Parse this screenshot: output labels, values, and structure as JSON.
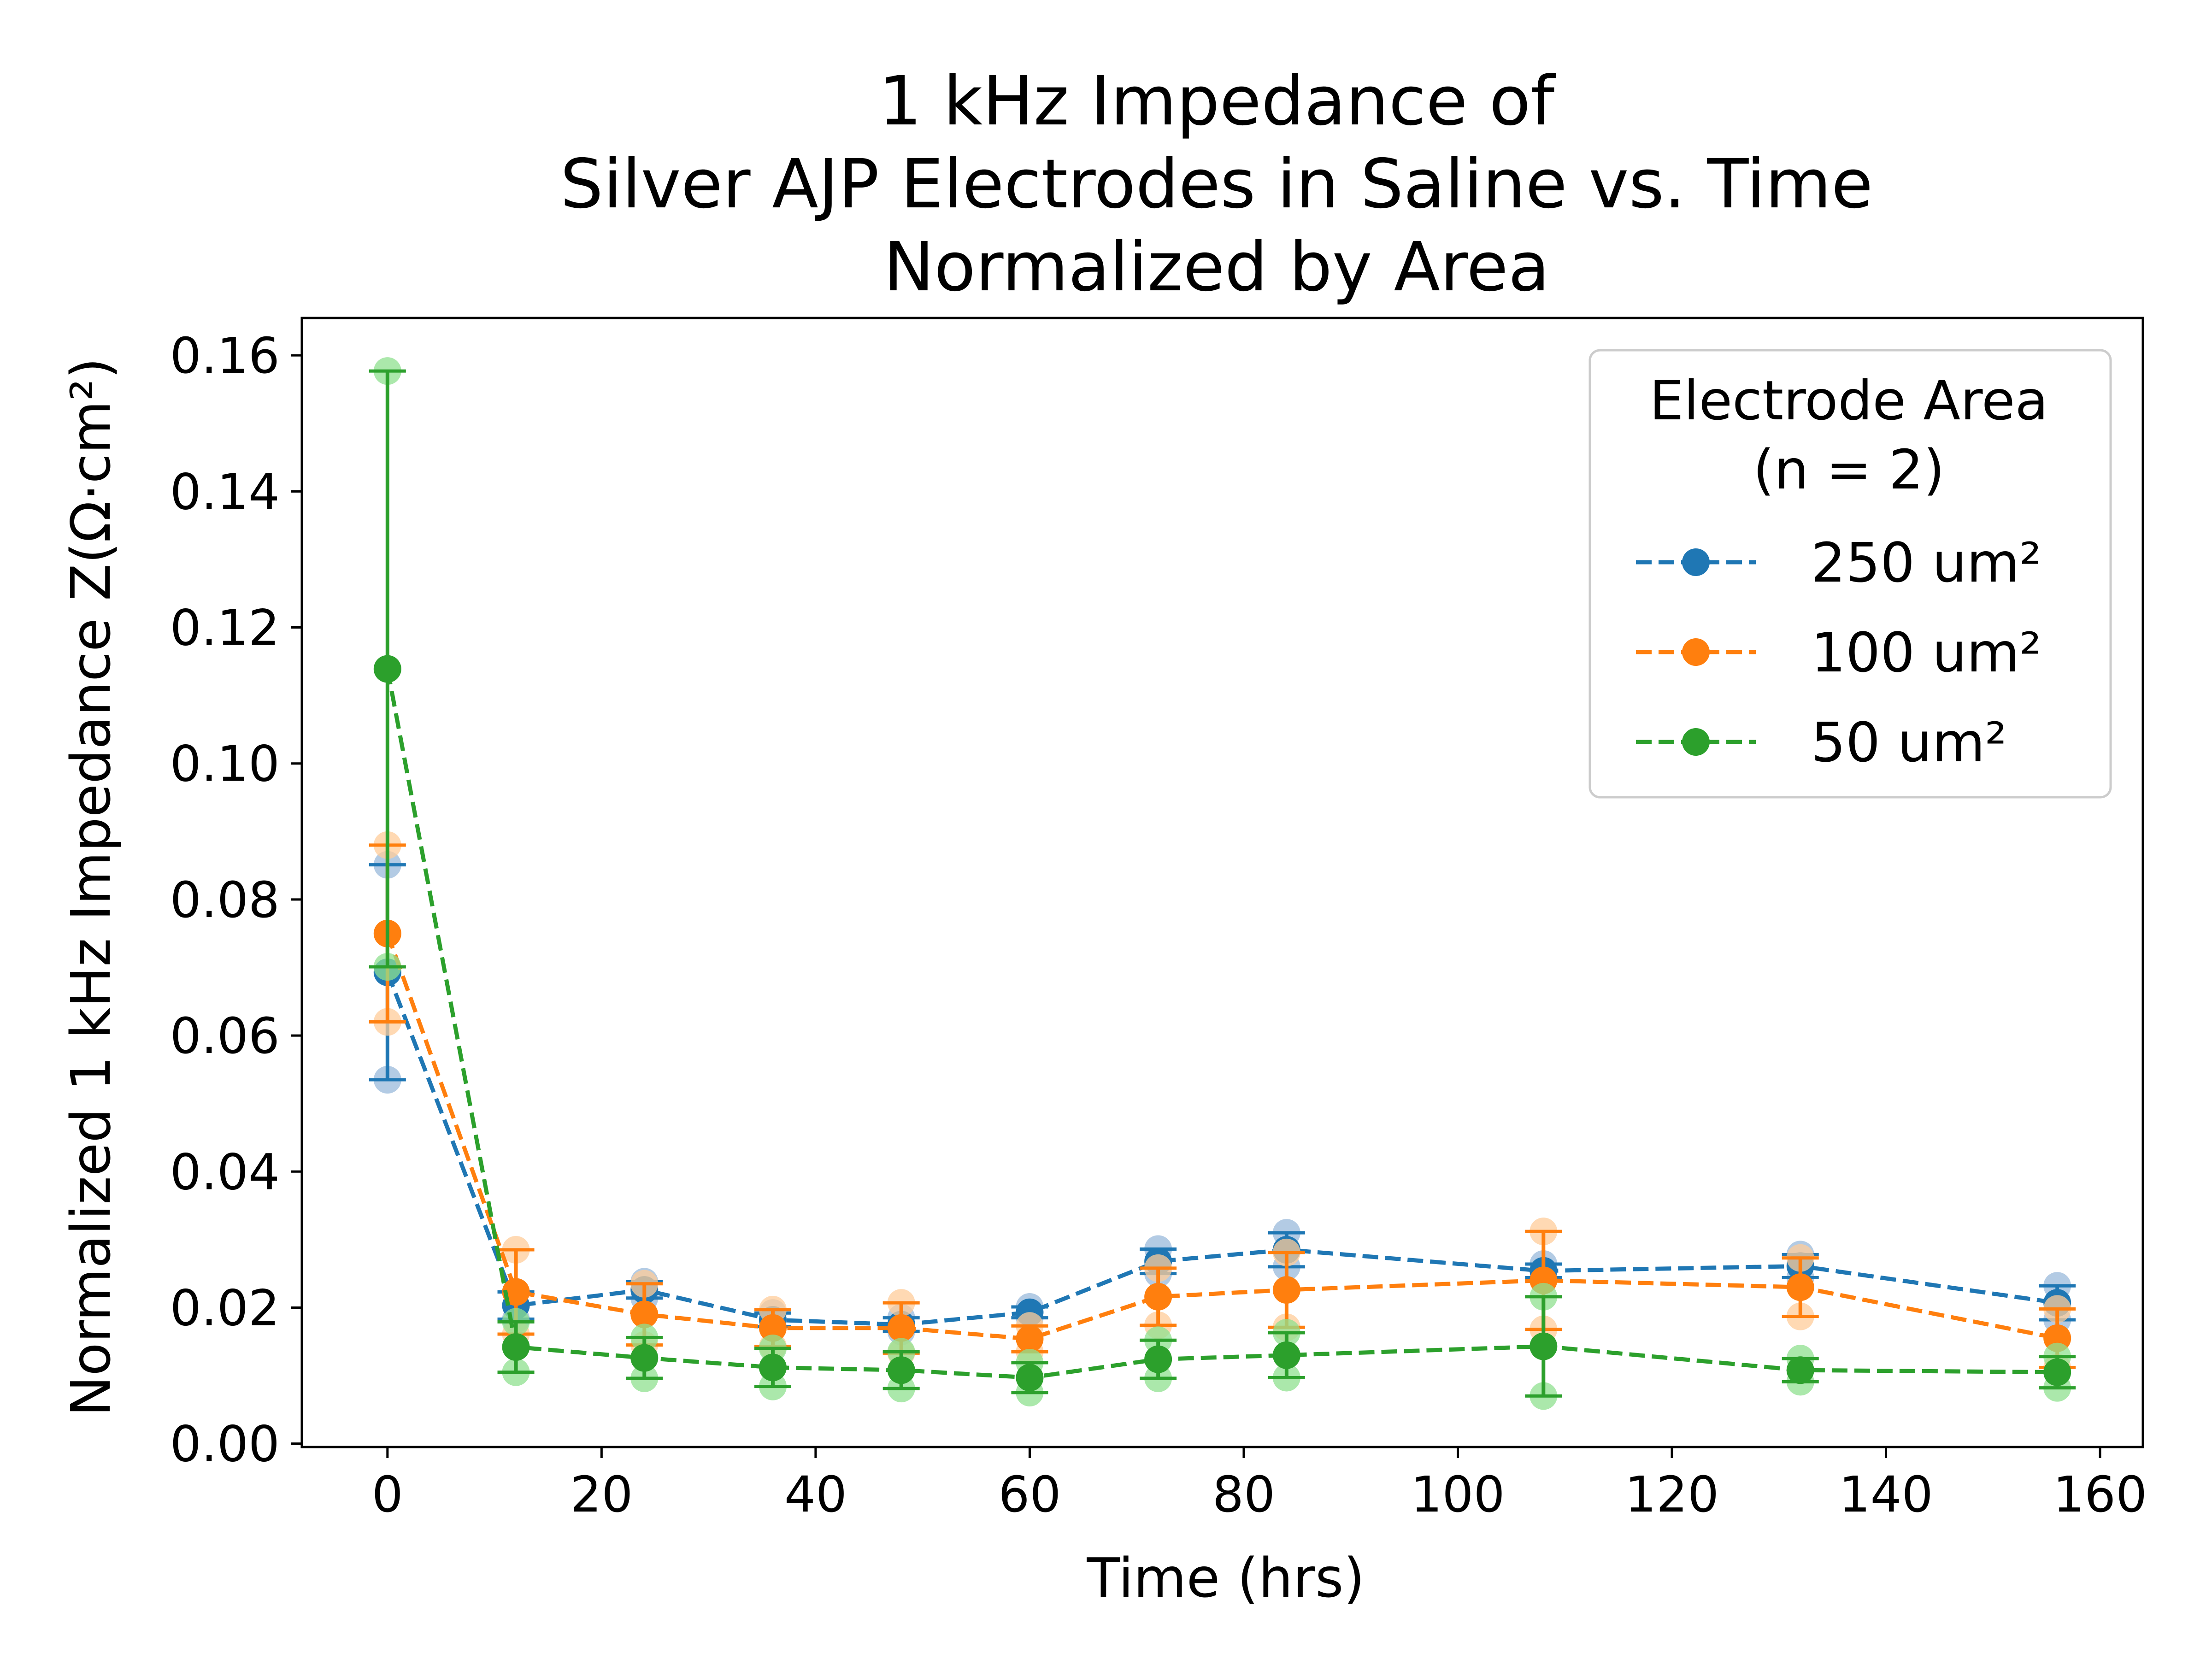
{
  "chart_data": {
    "type": "line",
    "title": [
      "1 kHz Impedance of",
      "Silver AJP Electrodes in Saline vs. Time",
      "Normalized by Area"
    ],
    "xlabel": "Time (hrs)",
    "ylabel": "Normalized 1 kHz Impedance Z(Ω·cm²)",
    "xlim": [
      -8,
      164
    ],
    "ylim": [
      -0.0005,
      0.1655
    ],
    "xticks": [
      0,
      20,
      40,
      60,
      80,
      100,
      120,
      140,
      160
    ],
    "yticks": [
      0.0,
      0.02,
      0.04,
      0.06,
      0.08,
      0.1,
      0.12,
      0.14,
      0.16
    ],
    "xtick_labels": [
      "0",
      "20",
      "40",
      "60",
      "80",
      "100",
      "120",
      "140",
      "160"
    ],
    "ytick_labels": [
      "0.00",
      "0.02",
      "0.04",
      "0.06",
      "0.08",
      "0.10",
      "0.12",
      "0.14",
      "0.16"
    ],
    "grid": false,
    "legend": {
      "title": [
        "Electrode Area",
        "(n = 2)"
      ],
      "placement": "top-right"
    },
    "x": [
      0,
      12,
      24,
      36,
      48,
      60,
      72,
      84,
      108,
      132,
      156
    ],
    "series": [
      {
        "name": "250 um²",
        "color": "#1f77b4",
        "light_color": "#9ab9db",
        "values": [
          0.0693,
          0.0203,
          0.0226,
          0.0182,
          0.0175,
          0.0193,
          0.0268,
          0.0285,
          0.0254,
          0.0261,
          0.0207
        ],
        "err": [
          0.0158,
          0.002,
          0.0012,
          0.001,
          0.001,
          0.0008,
          0.0018,
          0.0025,
          0.001,
          0.0017,
          0.0025
        ],
        "samples": [
          [
            0.0535,
            0.0851
          ],
          [
            0.0183,
            0.0223
          ],
          [
            0.0214,
            0.0238
          ],
          [
            0.0172,
            0.0192
          ],
          [
            0.0165,
            0.0185
          ],
          [
            0.0185,
            0.0201
          ],
          [
            0.025,
            0.0286
          ],
          [
            0.026,
            0.031
          ],
          [
            0.0244,
            0.0264
          ],
          [
            0.0244,
            0.0278
          ],
          [
            0.0182,
            0.0232
          ]
        ]
      },
      {
        "name": "100 um²",
        "color": "#ff7f0e",
        "light_color": "#ffcc9a",
        "values": [
          0.075,
          0.0223,
          0.019,
          0.017,
          0.017,
          0.0154,
          0.0216,
          0.0226,
          0.024,
          0.023,
          0.0155
        ],
        "err": [
          0.013,
          0.0062,
          0.0045,
          0.0027,
          0.0037,
          0.0019,
          0.0042,
          0.0055,
          0.0072,
          0.0043,
          0.0043
        ],
        "samples": [
          [
            0.062,
            0.088
          ],
          [
            0.0161,
            0.0285
          ],
          [
            0.0145,
            0.0235
          ],
          [
            0.0143,
            0.0197
          ],
          [
            0.0133,
            0.0207
          ],
          [
            0.0135,
            0.0173
          ],
          [
            0.0174,
            0.0258
          ],
          [
            0.0171,
            0.0281
          ],
          [
            0.0168,
            0.0312
          ],
          [
            0.0187,
            0.0273
          ],
          [
            0.0112,
            0.0198
          ]
        ]
      },
      {
        "name": "50 um²",
        "color": "#2ca02c",
        "light_color": "#8fe08f",
        "values": [
          0.1139,
          0.0142,
          0.0126,
          0.0112,
          0.0108,
          0.0097,
          0.0124,
          0.013,
          0.0143,
          0.0108,
          0.0105
        ],
        "err": [
          0.0438,
          0.0037,
          0.003,
          0.0028,
          0.0027,
          0.0022,
          0.0028,
          0.0033,
          0.0073,
          0.0017,
          0.0023
        ],
        "samples": [
          [
            0.0701,
            0.1577
          ],
          [
            0.0105,
            0.0179
          ],
          [
            0.0096,
            0.0156
          ],
          [
            0.0084,
            0.014
          ],
          [
            0.0081,
            0.0135
          ],
          [
            0.0075,
            0.0119
          ],
          [
            0.0096,
            0.0152
          ],
          [
            0.0097,
            0.0163
          ],
          [
            0.007,
            0.0216
          ],
          [
            0.0091,
            0.0125
          ],
          [
            0.0082,
            0.0128
          ]
        ]
      }
    ]
  }
}
